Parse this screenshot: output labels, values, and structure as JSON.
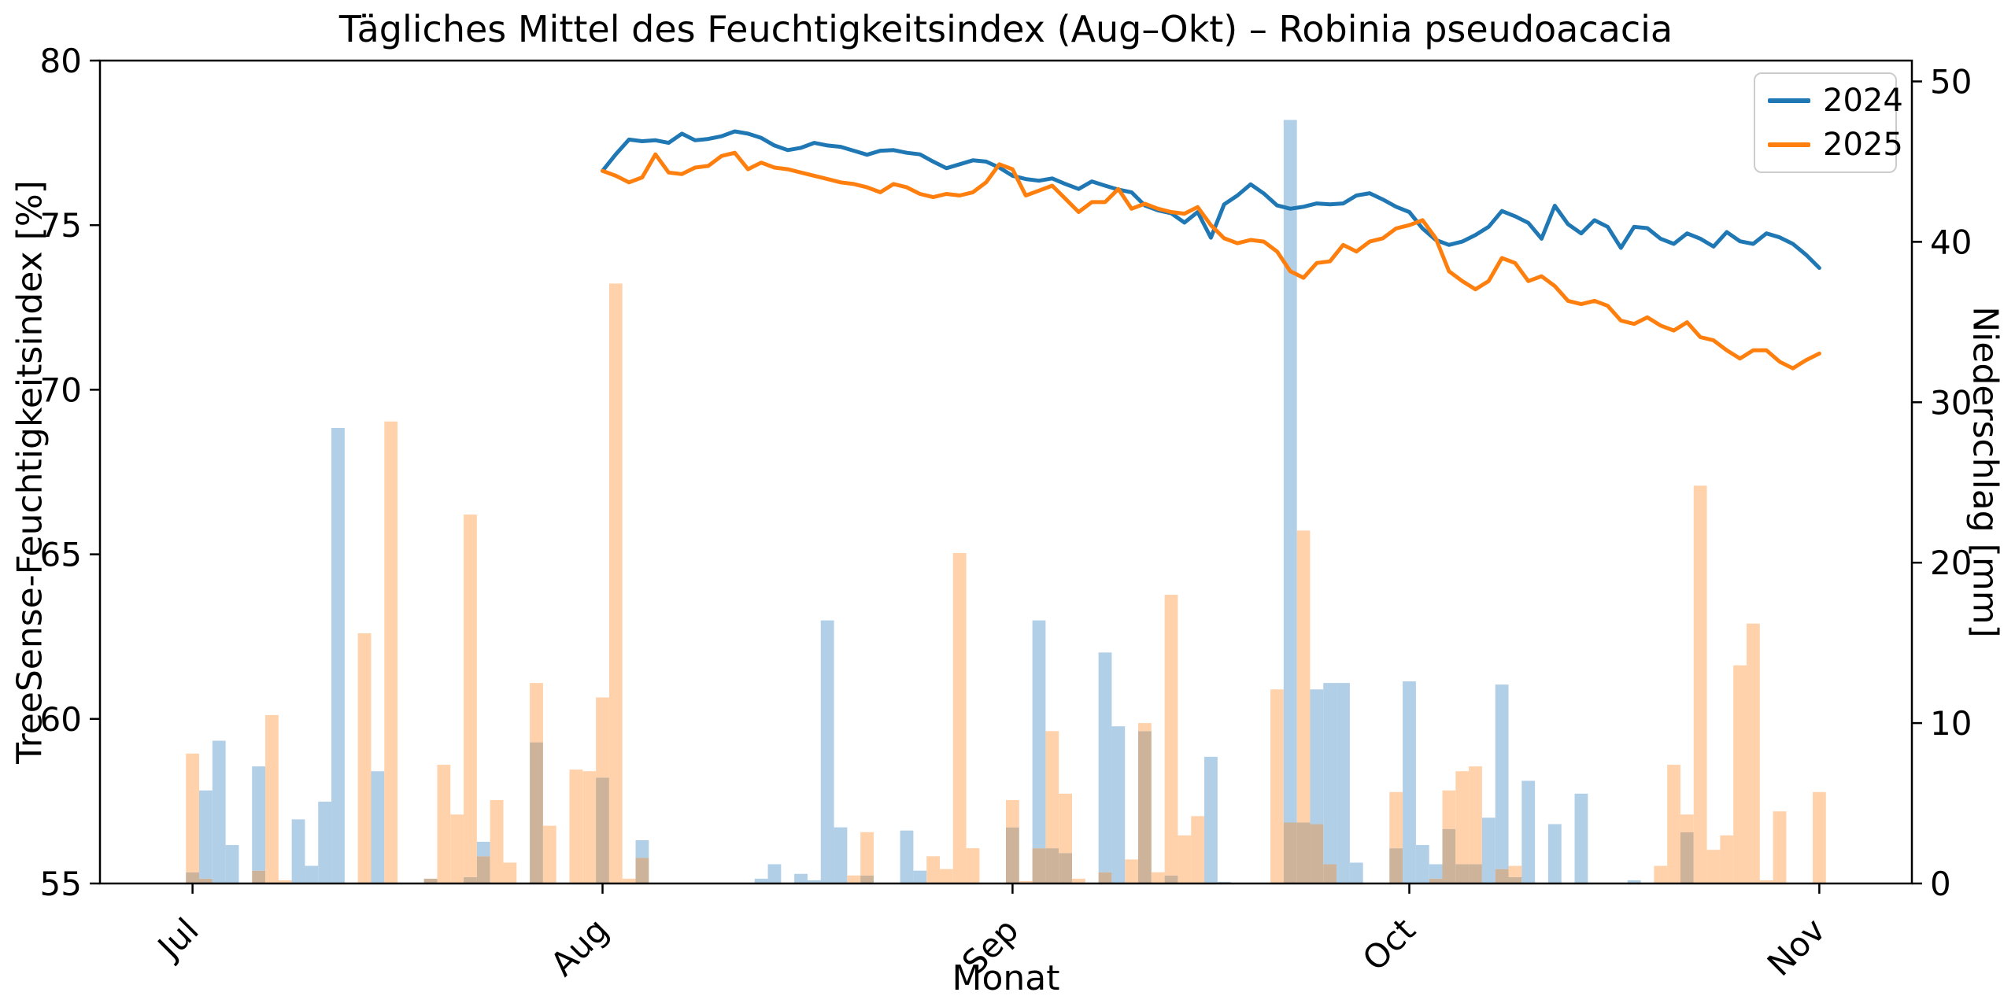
{
  "title": "Tägliches Mittel des Feuchtigkeitsindex (Aug–Okt) – Robinia pseudoacacia",
  "axes": {
    "x_label": "Monat",
    "y_left_label": "TreeSense-Feuchtigkeitsindex [%]",
    "y_right_label": "Niederschlag [mm]",
    "x_tick_labels": [
      "Jul",
      "Aug",
      "Sep",
      "Oct",
      "Nov"
    ],
    "x_tick_days": [
      0,
      31,
      62,
      92,
      123
    ],
    "x_range_days": [
      -7,
      130
    ],
    "y_left_ticks": [
      55,
      60,
      65,
      70,
      75,
      80
    ],
    "y_left_range": [
      55,
      80
    ],
    "y_right_ticks": [
      0,
      10,
      20,
      30,
      40,
      50
    ],
    "y_right_range": [
      0,
      51.3
    ]
  },
  "legend": {
    "entries": [
      {
        "label": "2024",
        "color": "#1f77b4"
      },
      {
        "label": "2025",
        "color": "#ff7f0e"
      }
    ]
  },
  "colors": {
    "line_2024": "#1f77b4",
    "line_2025": "#ff7f0e",
    "bar_2024": "#b1cfe7",
    "bar_2025": "#ffd2ab",
    "bar_overlap": "#ccb39a",
    "axis": "#000000",
    "background": "#ffffff",
    "legend_border": "#cccccc"
  },
  "chart_data": {
    "type": "line+bar",
    "title": "Tägliches Mittel des Feuchtigkeitsindex (Aug–Okt) – Robinia pseudoacacia",
    "xlabel": "Monat",
    "ylabel_left": "TreeSense-Feuchtigkeitsindex [%]",
    "ylabel_right": "Niederschlag [mm]",
    "x_unit": "day index, 0 = Jul 1",
    "lines_start_day": 31,
    "lines": [
      {
        "name": "2024",
        "color": "#1f77b4",
        "axis": "left",
        "values": [
          76.65,
          77.15,
          77.6,
          77.55,
          77.58,
          77.5,
          77.78,
          77.58,
          77.62,
          77.7,
          77.85,
          77.78,
          77.65,
          77.42,
          77.28,
          77.35,
          77.5,
          77.42,
          77.38,
          77.26,
          77.14,
          77.26,
          77.28,
          77.2,
          77.15,
          76.93,
          76.73,
          76.85,
          76.97,
          76.93,
          76.75,
          76.5,
          76.4,
          76.35,
          76.42,
          76.25,
          76.1,
          76.33,
          76.2,
          76.08,
          76.0,
          75.6,
          75.45,
          75.36,
          75.08,
          75.4,
          74.62,
          75.63,
          75.9,
          76.24,
          75.96,
          75.6,
          75.5,
          75.56,
          75.66,
          75.63,
          75.66,
          75.9,
          75.97,
          75.78,
          75.56,
          75.4,
          74.9,
          74.55,
          74.4,
          74.5,
          74.7,
          74.95,
          75.43,
          75.27,
          75.07,
          74.59,
          75.59,
          75.03,
          74.75,
          75.15,
          74.95,
          74.31,
          74.95,
          74.91,
          74.59,
          74.43,
          74.75,
          74.59,
          74.35,
          74.79,
          74.51,
          74.43,
          74.75,
          74.63,
          74.43,
          74.1,
          73.7
        ]
      },
      {
        "name": "2025",
        "color": "#ff7f0e",
        "axis": "left",
        "values": [
          76.65,
          76.5,
          76.3,
          76.45,
          77.15,
          76.6,
          76.55,
          76.75,
          76.8,
          77.1,
          77.2,
          76.7,
          76.9,
          76.75,
          76.7,
          76.6,
          76.5,
          76.4,
          76.3,
          76.25,
          76.15,
          76.0,
          76.25,
          76.15,
          75.95,
          75.85,
          75.95,
          75.9,
          76.0,
          76.3,
          76.85,
          76.7,
          75.9,
          76.05,
          76.2,
          75.8,
          75.4,
          75.7,
          75.7,
          76.1,
          75.5,
          75.65,
          75.5,
          75.4,
          75.35,
          75.55,
          75.0,
          74.6,
          74.45,
          74.55,
          74.5,
          74.2,
          73.6,
          73.4,
          73.85,
          73.9,
          74.4,
          74.2,
          74.5,
          74.6,
          74.9,
          75.0,
          75.15,
          74.6,
          73.6,
          73.3,
          73.05,
          73.3,
          74.0,
          73.85,
          73.3,
          73.45,
          73.15,
          72.7,
          72.6,
          72.7,
          72.55,
          72.1,
          72.0,
          72.2,
          71.95,
          71.8,
          72.05,
          71.6,
          71.5,
          71.2,
          70.95,
          71.2,
          71.2,
          70.85,
          70.65,
          70.9,
          71.1
        ]
      }
    ],
    "bars": {
      "unit": "mm",
      "axis": "right",
      "bar_width_days": 1,
      "overlap_color": "#ccb39a",
      "series": [
        {
          "name": "Niederschlag 2024",
          "color": "#b1cfe7",
          "points": [
            [
              0,
              0.7
            ],
            [
              1,
              5.8
            ],
            [
              2,
              8.9
            ],
            [
              3,
              2.4
            ],
            [
              5,
              7.3
            ],
            [
              8,
              4.0
            ],
            [
              9,
              1.1
            ],
            [
              10,
              5.1
            ],
            [
              11,
              28.4
            ],
            [
              14,
              7.0
            ],
            [
              18,
              0.3
            ],
            [
              21,
              0.4
            ],
            [
              22,
              2.6
            ],
            [
              26,
              8.8
            ],
            [
              31,
              6.6
            ],
            [
              34,
              2.7
            ],
            [
              43,
              0.3
            ],
            [
              44,
              1.2
            ],
            [
              46,
              0.6
            ],
            [
              47,
              0.2
            ],
            [
              48,
              16.4
            ],
            [
              49,
              3.5
            ],
            [
              51,
              0.5
            ],
            [
              54,
              3.3
            ],
            [
              55,
              0.8
            ],
            [
              62,
              3.5
            ],
            [
              64,
              16.4
            ],
            [
              65,
              2.2
            ],
            [
              66,
              1.9
            ],
            [
              69,
              14.4
            ],
            [
              70,
              9.8
            ],
            [
              72,
              9.5
            ],
            [
              74,
              0.5
            ],
            [
              77,
              7.9
            ],
            [
              78,
              0.1
            ],
            [
              83,
              47.6
            ],
            [
              84,
              3.8
            ],
            [
              85,
              12.1
            ],
            [
              86,
              12.5
            ],
            [
              87,
              12.5
            ],
            [
              88,
              1.3
            ],
            [
              91,
              2.2
            ],
            [
              92,
              12.6
            ],
            [
              93,
              2.4
            ],
            [
              94,
              1.2
            ],
            [
              95,
              3.4
            ],
            [
              96,
              1.2
            ],
            [
              97,
              1.2
            ],
            [
              98,
              4.1
            ],
            [
              99,
              12.4
            ],
            [
              100,
              0.4
            ],
            [
              101,
              6.4
            ],
            [
              103,
              3.7
            ],
            [
              105,
              5.6
            ],
            [
              109,
              0.2
            ],
            [
              113,
              3.2
            ]
          ]
        },
        {
          "name": "Niederschlag 2025",
          "color": "#ffd2ab",
          "points": [
            [
              0,
              8.1
            ],
            [
              1,
              0.3
            ],
            [
              5,
              0.8
            ],
            [
              6,
              10.5
            ],
            [
              7,
              0.2
            ],
            [
              13,
              15.6
            ],
            [
              15,
              28.8
            ],
            [
              18,
              0.3
            ],
            [
              19,
              7.4
            ],
            [
              20,
              4.3
            ],
            [
              21,
              23.0
            ],
            [
              22,
              1.7
            ],
            [
              23,
              5.2
            ],
            [
              24,
              1.3
            ],
            [
              26,
              12.5
            ],
            [
              27,
              3.6
            ],
            [
              29,
              7.1
            ],
            [
              30,
              7.0
            ],
            [
              31,
              11.6
            ],
            [
              32,
              37.4
            ],
            [
              33,
              0.3
            ],
            [
              34,
              1.6
            ],
            [
              50,
              0.5
            ],
            [
              51,
              3.2
            ],
            [
              56,
              1.7
            ],
            [
              57,
              0.9
            ],
            [
              58,
              20.6
            ],
            [
              59,
              2.2
            ],
            [
              62,
              5.2
            ],
            [
              63,
              0.15
            ],
            [
              64,
              2.2
            ],
            [
              65,
              9.5
            ],
            [
              66,
              5.6
            ],
            [
              67,
              0.3
            ],
            [
              69,
              0.7
            ],
            [
              71,
              1.5
            ],
            [
              72,
              10.0
            ],
            [
              73,
              0.7
            ],
            [
              74,
              18.0
            ],
            [
              75,
              3.0
            ],
            [
              76,
              4.2
            ],
            [
              82,
              12.1
            ],
            [
              83,
              3.8
            ],
            [
              84,
              22.0
            ],
            [
              85,
              3.7
            ],
            [
              86,
              1.2
            ],
            [
              91,
              5.7
            ],
            [
              94,
              0.3
            ],
            [
              95,
              5.8
            ],
            [
              96,
              7.0
            ],
            [
              97,
              7.3
            ],
            [
              99,
              0.9
            ],
            [
              100,
              1.1
            ],
            [
              111,
              1.1
            ],
            [
              112,
              7.4
            ],
            [
              113,
              4.3
            ],
            [
              114,
              24.8
            ],
            [
              115,
              2.1
            ],
            [
              116,
              3.0
            ],
            [
              117,
              13.6
            ],
            [
              118,
              16.2
            ],
            [
              119,
              0.2
            ],
            [
              120,
              4.5
            ],
            [
              123,
              5.7
            ]
          ]
        }
      ]
    },
    "legend_entries": [
      "2024",
      "2025"
    ],
    "legend_position": "upper right",
    "grid": false
  }
}
